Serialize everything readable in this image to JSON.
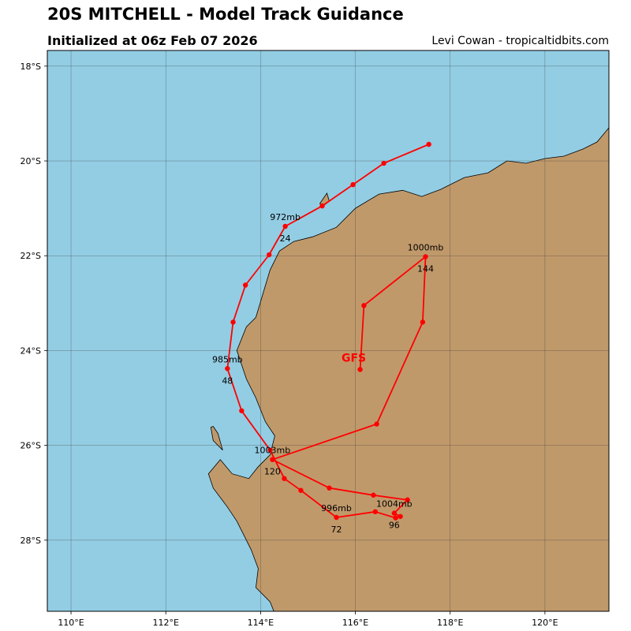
{
  "header": {
    "title": "20S MITCHELL - Model Track Guidance",
    "subtitle": "Initialized at 06z Feb 07 2026",
    "credit": "Levi Cowan - tropicaltidbits.com"
  },
  "map": {
    "lon_range": [
      109.5,
      121.35
    ],
    "lat_range": [
      -29.5,
      -17.67
    ],
    "lon_ticks": [
      {
        "value": 110,
        "label": "110°E"
      },
      {
        "value": 112,
        "label": "112°E"
      },
      {
        "value": 114,
        "label": "114°E"
      },
      {
        "value": 116,
        "label": "116°E"
      },
      {
        "value": 118,
        "label": "118°E"
      },
      {
        "value": 120,
        "label": "120°E"
      }
    ],
    "lat_ticks": [
      {
        "value": -18,
        "label": "18°S"
      },
      {
        "value": -20,
        "label": "20°S"
      },
      {
        "value": -22,
        "label": "22°S"
      },
      {
        "value": -24,
        "label": "24°S"
      },
      {
        "value": -26,
        "label": "26°S"
      },
      {
        "value": -28,
        "label": "28°S"
      }
    ],
    "colors": {
      "ocean": "#93cde3",
      "land": "#c0996b",
      "track": "#ff0000",
      "grid": "#333333"
    },
    "coastline": [
      [
        114.28,
        -29.5
      ],
      [
        114.2,
        -29.3
      ],
      [
        113.9,
        -29.0
      ],
      [
        113.95,
        -28.6
      ],
      [
        113.8,
        -28.2
      ],
      [
        113.5,
        -27.6
      ],
      [
        113.3,
        -27.3
      ],
      [
        113.0,
        -26.9
      ],
      [
        112.9,
        -26.6
      ],
      [
        113.15,
        -26.3
      ],
      [
        113.4,
        -26.6
      ],
      [
        113.75,
        -26.7
      ],
      [
        113.95,
        -26.45
      ],
      [
        114.2,
        -26.2
      ],
      [
        114.3,
        -25.8
      ],
      [
        114.1,
        -25.5
      ],
      [
        113.9,
        -25.0
      ],
      [
        113.7,
        -24.6
      ],
      [
        113.5,
        -24.0
      ],
      [
        113.7,
        -23.5
      ],
      [
        113.9,
        -23.3
      ],
      [
        114.05,
        -22.8
      ],
      [
        114.2,
        -22.3
      ],
      [
        114.4,
        -21.9
      ],
      [
        114.7,
        -21.7
      ],
      [
        115.1,
        -21.6
      ],
      [
        115.6,
        -21.4
      ],
      [
        116.0,
        -21.0
      ],
      [
        116.5,
        -20.7
      ],
      [
        117.0,
        -20.62
      ],
      [
        117.4,
        -20.75
      ],
      [
        117.8,
        -20.6
      ],
      [
        118.3,
        -20.35
      ],
      [
        118.8,
        -20.25
      ],
      [
        119.2,
        -20.0
      ],
      [
        119.6,
        -20.05
      ],
      [
        120.0,
        -19.95
      ],
      [
        120.4,
        -19.9
      ],
      [
        120.8,
        -19.75
      ],
      [
        121.1,
        -19.6
      ],
      [
        121.35,
        -19.3
      ],
      [
        121.35,
        -29.5
      ]
    ],
    "islands": [
      [
        [
          113.0,
          -25.6
        ],
        [
          113.1,
          -25.75
        ],
        [
          113.2,
          -26.1
        ],
        [
          113.0,
          -25.9
        ],
        [
          112.95,
          -25.62
        ]
      ],
      [
        [
          115.25,
          -20.9
        ],
        [
          115.4,
          -20.68
        ],
        [
          115.45,
          -20.85
        ],
        [
          115.32,
          -20.95
        ]
      ]
    ]
  },
  "chart_data": {
    "type": "map-track",
    "model_label": "GFS",
    "model_label_position": {
      "lon": 116.1,
      "lat": -24.15
    },
    "track": [
      {
        "lon": 117.55,
        "lat": -19.65
      },
      {
        "lon": 116.6,
        "lat": -20.05
      },
      {
        "lon": 115.95,
        "lat": -20.5
      },
      {
        "lon": 115.3,
        "lat": -20.95
      },
      {
        "lon": 114.52,
        "lat": -21.38
      },
      {
        "lon": 114.18,
        "lat": -21.98
      },
      {
        "lon": 113.68,
        "lat": -22.62
      },
      {
        "lon": 113.42,
        "lat": -23.4
      },
      {
        "lon": 113.3,
        "lat": -24.38
      },
      {
        "lon": 113.6,
        "lat": -25.27
      },
      {
        "lon": 114.2,
        "lat": -26.1
      },
      {
        "lon": 114.5,
        "lat": -26.7
      },
      {
        "lon": 114.85,
        "lat": -26.95
      },
      {
        "lon": 115.6,
        "lat": -27.52
      },
      {
        "lon": 116.42,
        "lat": -27.4
      },
      {
        "lon": 116.85,
        "lat": -27.53
      },
      {
        "lon": 116.95,
        "lat": -27.5
      },
      {
        "lon": 116.82,
        "lat": -27.43
      },
      {
        "lon": 117.1,
        "lat": -27.15
      },
      {
        "lon": 116.38,
        "lat": -27.05
      },
      {
        "lon": 115.45,
        "lat": -26.9
      },
      {
        "lon": 114.25,
        "lat": -26.3
      },
      {
        "lon": 116.45,
        "lat": -25.55
      },
      {
        "lon": 117.42,
        "lat": -23.4
      },
      {
        "lon": 117.48,
        "lat": -22.02
      },
      {
        "lon": 116.18,
        "lat": -23.05
      },
      {
        "lon": 116.1,
        "lat": -24.4
      }
    ],
    "annotations": [
      {
        "lon": 114.52,
        "lat": -21.38,
        "pressure": "972mb",
        "hour": "24"
      },
      {
        "lon": 113.3,
        "lat": -24.38,
        "pressure": "985mb",
        "hour": "48"
      },
      {
        "lon": 115.6,
        "lat": -27.52,
        "pressure": "996mb",
        "hour": "72"
      },
      {
        "lon": 116.82,
        "lat": -27.43,
        "pressure": "1004mb",
        "hour": "96"
      },
      {
        "lon": 114.25,
        "lat": -26.3,
        "pressure": "1003mb",
        "hour": "120"
      },
      {
        "lon": 117.48,
        "lat": -22.02,
        "pressure": "1000mb",
        "hour": "144"
      }
    ]
  }
}
